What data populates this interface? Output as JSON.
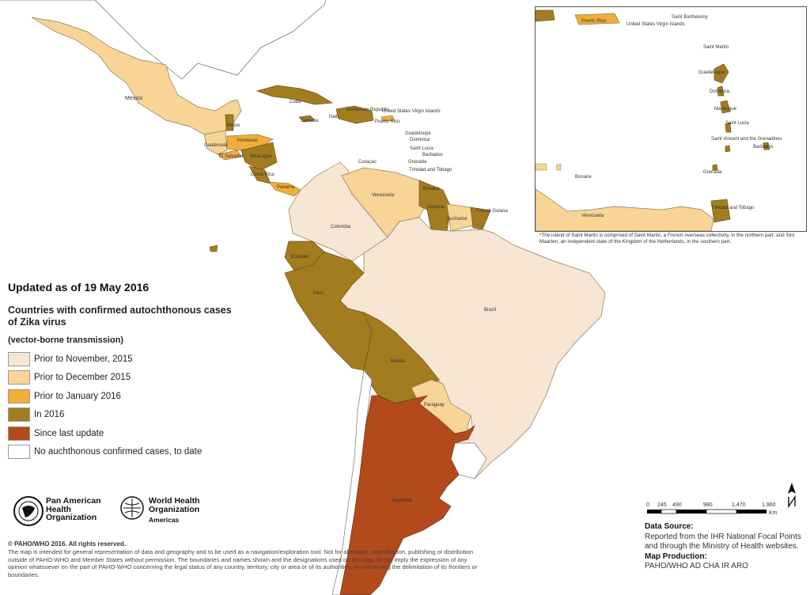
{
  "header": {
    "updated": "Updated as of 19 May 2016"
  },
  "legend": {
    "title": "Countries with confirmed autochthonous cases of Zika virus",
    "subtitle": "(vector-borne transmission)",
    "items": [
      {
        "label": "Prior to November, 2015",
        "color": "#f7e6d4"
      },
      {
        "label": "Prior to December 2015",
        "color": "#f8d496"
      },
      {
        "label": "Prior to January 2016",
        "color": "#f2ae36"
      },
      {
        "label": "In 2016",
        "color": "#a27c1f"
      },
      {
        "label": "Since last update",
        "color": "#b24a1c"
      },
      {
        "label": "No auchthonous confirmed cases, to date",
        "color": "#ffffff"
      }
    ]
  },
  "map_labels": {
    "mexico": "Mexico",
    "belize": "Belize",
    "guatemala": "Guatemala",
    "honduras": "Honduras",
    "el_salvador": "El Salvador",
    "nicaragua": "Nicaragua",
    "costa_rica": "Costa Rica",
    "panama": "Panama",
    "cuba": "Cuba",
    "jamaica": "Jamaica",
    "haiti": "Haiti",
    "dominican_republic": "Dominican Republic",
    "puerto_rico": "Puerto Rico",
    "usvi": "United States Virgin Islands",
    "guadeloupe": "Guadeloupe",
    "dominica": "Dominica",
    "saint_lucia": "Saint Lucia",
    "barbados": "Barbados",
    "grenada": "Grenada",
    "trinidad": "Trinidad and Tobago",
    "curacao": "Curaçao",
    "bonaire": "Bonaire",
    "venezuela": "Venezuela",
    "guyana": "Guyana",
    "suriname": "Suriname",
    "french_guiana": "French Guiana",
    "colombia": "Colombia",
    "ecuador": "Ecuador",
    "peru": "Peru",
    "brazil": "Brazil",
    "bolivia": "Bolivia",
    "paraguay": "Paraguay",
    "argentina": "Argentina"
  },
  "inset": {
    "labels": {
      "puerto_rico": "Puerto Rico",
      "usvi": "United States Virgin Islands",
      "saint_barthelemy": "Saint Barthelemy",
      "saint_martin": "Saint Martin",
      "guadeloupe": "Guadeloupe",
      "dominica": "Dominica",
      "martinique": "Martinique",
      "saint_lucia": "Saint Lucia",
      "saint_vincent": "Saint Vincent and the Grenadines",
      "barbados": "Barbados",
      "grenada": "Grenada",
      "bonaire": "Bonaire",
      "venezuela": "Venezuela",
      "trinidad": "Trinidad and Tobago"
    },
    "note": "*The island of Saint Martin is comprised of Saint Martin, a French overseas collectivity, in the northern part; and Sint Maarten, an independent state of the Kingdom of the Netherlands, in the southern part."
  },
  "logos": {
    "paho": "Pan American Health Organization",
    "who": "World Health Organization",
    "who_region": "Americas"
  },
  "footer": {
    "copyright": "© PAHO/WHO 2016. All rights reserved.",
    "disclaimer": "The map is intended for general representation of data and geography and to be used as a navigation/exploration tool. Not for alteration, reproduction, publishing or distribution outside of PAHO-WHO and Member States without permission. The boundaries and names shown and the designations used on this map do not imply the expression of any opinion whatsoever on the part of PAHO-WHO concerning the legal status of any country, territory, city or area or of its authorities, or concerning the delimitation of its frontiers or boundaries."
  },
  "scale": {
    "ticks": [
      "0",
      "245",
      "490",
      "980",
      "1,470",
      "1,960"
    ],
    "unit": "Km"
  },
  "source": {
    "label": "Data Source",
    "text": "Reported from the IHR National Focal Points and through the Ministry of Health websites.",
    "production_label": "Map Production",
    "production": "PAHO/WHO AD CHA IR ARO"
  }
}
